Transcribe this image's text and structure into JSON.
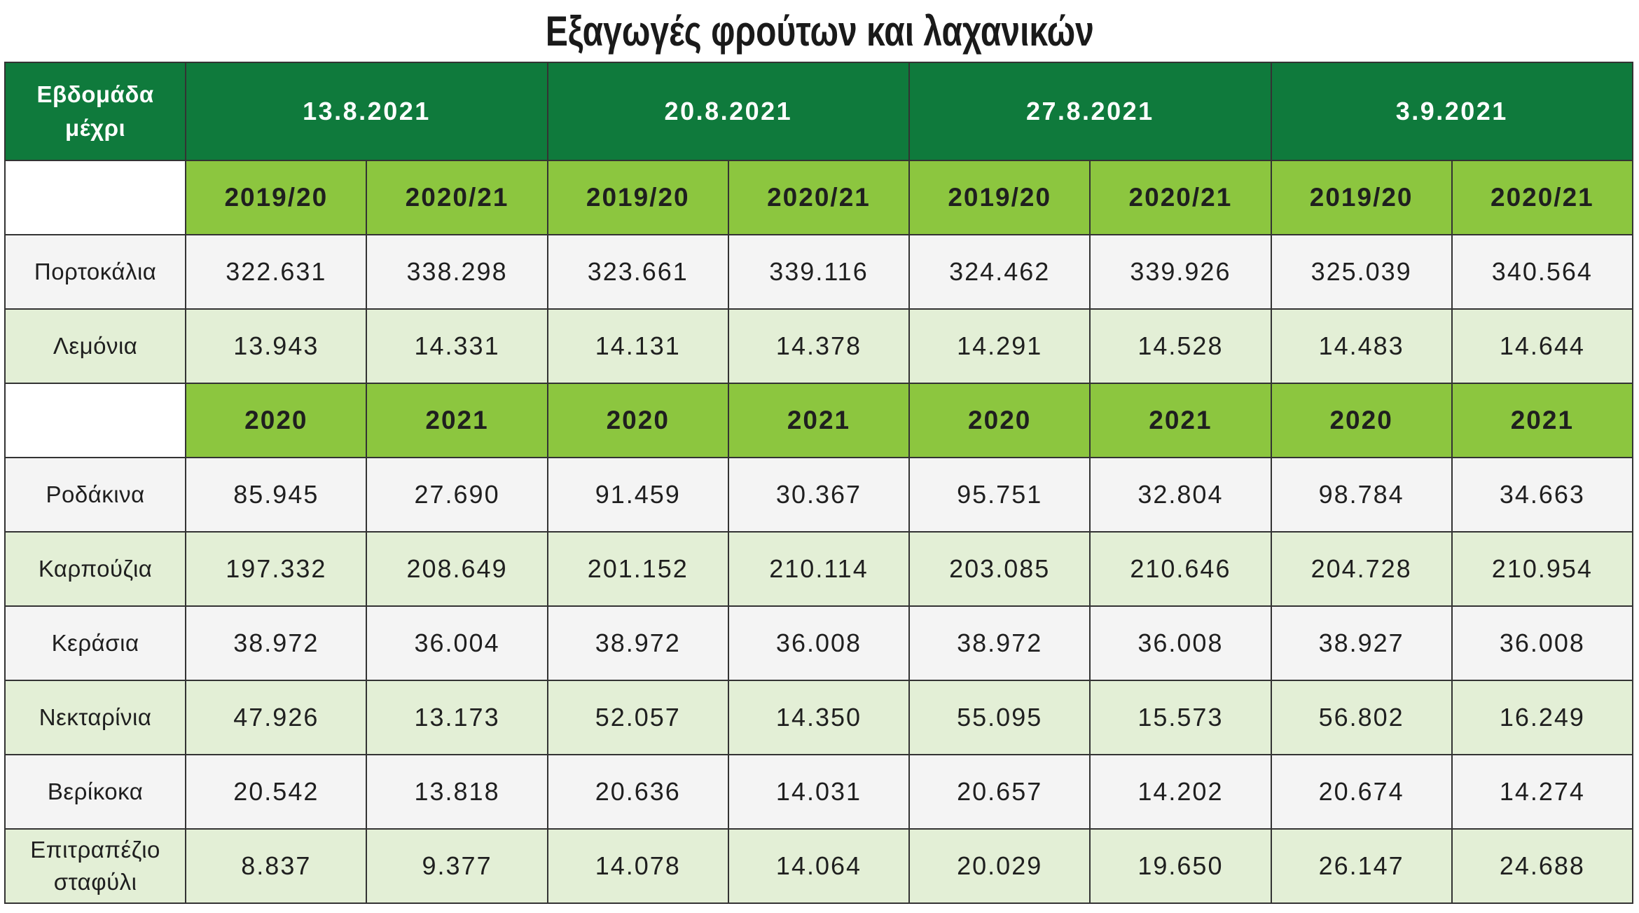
{
  "colors": {
    "header_dark_green": "#0f7a3c",
    "subheader_green": "#8cc63f",
    "row_light_green": "#e3efd6",
    "row_light_gray": "#f4f4f4",
    "border": "#333333",
    "header_text": "#ffffff",
    "body_text": "#1f1f1f"
  },
  "chart_data": {
    "type": "table",
    "title": "Εξαγωγές φρούτων και λαχανικών",
    "corner_label": "Εβδομάδα μέχρι",
    "weeks": [
      "13.8.2021",
      "20.8.2021",
      "27.8.2021",
      "3.9.2021"
    ],
    "sections": [
      {
        "columns": [
          "2019/20",
          "2020/21",
          "2019/20",
          "2020/21",
          "2019/20",
          "2020/21",
          "2019/20",
          "2020/21"
        ],
        "rows": [
          {
            "label": "Πορτοκάλια",
            "values": [
              "322.631",
              "338.298",
              "323.661",
              "339.116",
              "324.462",
              "339.926",
              "325.039",
              "340.564"
            ]
          },
          {
            "label": "Λεμόνια",
            "values": [
              "13.943",
              "14.331",
              "14.131",
              "14.378",
              "14.291",
              "14.528",
              "14.483",
              "14.644"
            ]
          }
        ]
      },
      {
        "columns": [
          "2020",
          "2021",
          "2020",
          "2021",
          "2020",
          "2021",
          "2020",
          "2021"
        ],
        "rows": [
          {
            "label": "Ροδάκινα",
            "values": [
              "85.945",
              "27.690",
              "91.459",
              "30.367",
              "95.751",
              "32.804",
              "98.784",
              "34.663"
            ]
          },
          {
            "label": "Καρπούζια",
            "values": [
              "197.332",
              "208.649",
              "201.152",
              "210.114",
              "203.085",
              "210.646",
              "204.728",
              "210.954"
            ]
          },
          {
            "label": "Κεράσια",
            "values": [
              "38.972",
              "36.004",
              "38.972",
              "36.008",
              "38.972",
              "36.008",
              "38.927",
              "36.008"
            ]
          },
          {
            "label": "Νεκταρίνια",
            "values": [
              "47.926",
              "13.173",
              "52.057",
              "14.350",
              "55.095",
              "15.573",
              "56.802",
              "16.249"
            ]
          },
          {
            "label": "Βερίκοκα",
            "values": [
              "20.542",
              "13.818",
              "20.636",
              "14.031",
              "20.657",
              "14.202",
              "20.674",
              "14.274"
            ]
          },
          {
            "label": "Επιτραπέζιο σταφύλι",
            "values": [
              "8.837",
              "9.377",
              "14.078",
              "14.064",
              "20.029",
              "19.650",
              "26.147",
              "24.688"
            ]
          }
        ]
      }
    ]
  }
}
